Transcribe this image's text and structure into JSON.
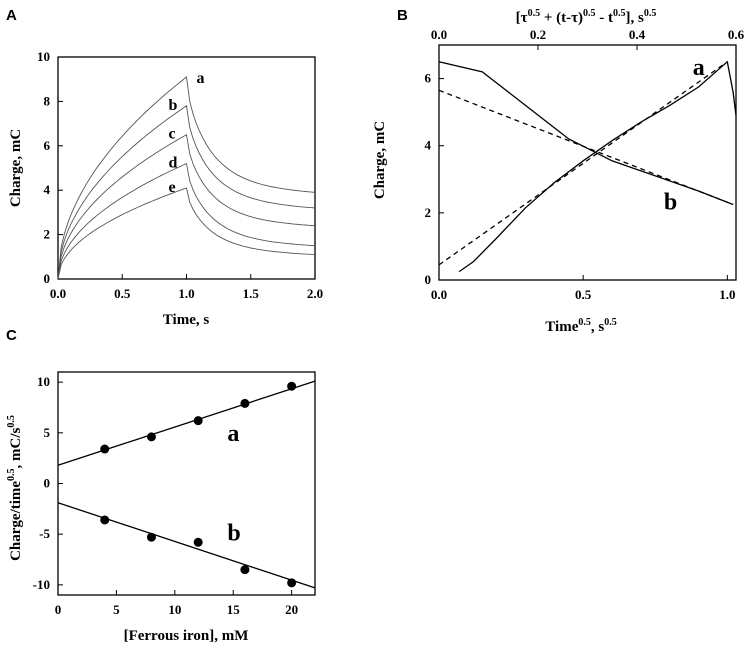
{
  "chart_data": [
    {
      "panel": "A",
      "type": "line",
      "xlabel": "Time, s",
      "ylabel": "Charge, mC",
      "xlim": [
        0,
        2.0
      ],
      "ylim": [
        0,
        10
      ],
      "xticks": [
        "0.0",
        "0.5",
        "1.0",
        "1.5",
        "2.0"
      ],
      "yticks": [
        "0",
        "2",
        "4",
        "6",
        "8",
        "10"
      ],
      "series": [
        {
          "name": "a",
          "peak_time": 1.0,
          "peak_charge": 9.1,
          "end_charge": 3.9
        },
        {
          "name": "b",
          "peak_time": 1.0,
          "peak_charge": 7.8,
          "end_charge": 3.2
        },
        {
          "name": "c",
          "peak_time": 1.0,
          "peak_charge": 6.5,
          "end_charge": 2.4
        },
        {
          "name": "d",
          "peak_time": 1.0,
          "peak_charge": 5.2,
          "end_charge": 1.5
        },
        {
          "name": "e",
          "peak_time": 1.0,
          "peak_charge": 4.1,
          "end_charge": 1.1
        }
      ]
    },
    {
      "panel": "B",
      "type": "line",
      "xlabel": "Time0.5, s0.5",
      "xlabel_main": "Time",
      "xlabel_unit": ", s",
      "xlabel_exp": "0.5",
      "top_xlabel_parts": [
        "[τ",
        "0.5",
        " + (t-τ)",
        "0.5",
        " - t",
        "0.5",
        "], s",
        "0.5"
      ],
      "ylabel": "Charge, mC",
      "xlim": [
        0,
        1.03
      ],
      "top_xlim": [
        0,
        0.6
      ],
      "ylim": [
        0,
        7
      ],
      "xticks": [
        "0.0",
        "0.5",
        "1.0"
      ],
      "top_xticks": [
        "0.0",
        "0.2",
        "0.4",
        "0.6"
      ],
      "yticks": [
        "0",
        "2",
        "4",
        "6"
      ],
      "series": [
        {
          "name": "a",
          "style": "solid",
          "x": [
            0.07,
            0.12,
            0.2,
            0.3,
            0.4,
            0.5,
            0.6,
            0.7,
            0.8,
            0.9,
            1.0,
            1.02,
            1.03
          ],
          "y": [
            0.25,
            0.55,
            1.25,
            2.15,
            2.9,
            3.55,
            4.15,
            4.7,
            5.2,
            5.75,
            6.5,
            5.6,
            4.9
          ]
        },
        {
          "name": "a-fit",
          "style": "dashed",
          "x": [
            0.0,
            1.0
          ],
          "y": [
            0.45,
            6.5
          ]
        },
        {
          "name": "b",
          "style": "solid",
          "x": [
            0.0,
            0.15,
            0.3,
            0.45,
            0.6,
            0.75,
            0.9,
            1.02
          ],
          "y": [
            6.5,
            6.2,
            5.2,
            4.2,
            3.55,
            3.1,
            2.65,
            2.25
          ]
        },
        {
          "name": "b-fit",
          "style": "dashed",
          "x": [
            0.0,
            1.02
          ],
          "y": [
            5.65,
            2.25
          ]
        }
      ],
      "labels": [
        "a",
        "b"
      ]
    },
    {
      "panel": "C",
      "type": "scatter",
      "xlabel": "[Ferrous iron], mM",
      "ylabel_main": "Charge/time",
      "ylabel_exp1": "0.5",
      "ylabel_mid": ", mC/s",
      "ylabel_exp2": "0.5",
      "xlim": [
        0,
        22
      ],
      "ylim": [
        -11,
        11
      ],
      "xticks": [
        "0",
        "5",
        "10",
        "15",
        "20"
      ],
      "yticks": [
        "-10",
        "-5",
        "0",
        "5",
        "10"
      ],
      "series": [
        {
          "name": "a",
          "x": [
            4,
            8,
            12,
            16,
            20
          ],
          "y": [
            3.4,
            4.6,
            6.2,
            7.9,
            9.6
          ],
          "fit": [
            1.8,
            10.1
          ]
        },
        {
          "name": "b",
          "x": [
            4,
            8,
            12,
            16,
            20
          ],
          "y": [
            -3.6,
            -5.3,
            -5.8,
            -8.5,
            -9.8
          ],
          "fit": [
            -1.9,
            -10.3
          ]
        }
      ],
      "labels": [
        "a",
        "b"
      ]
    }
  ],
  "panel_letters": [
    "A",
    "B",
    "C"
  ]
}
